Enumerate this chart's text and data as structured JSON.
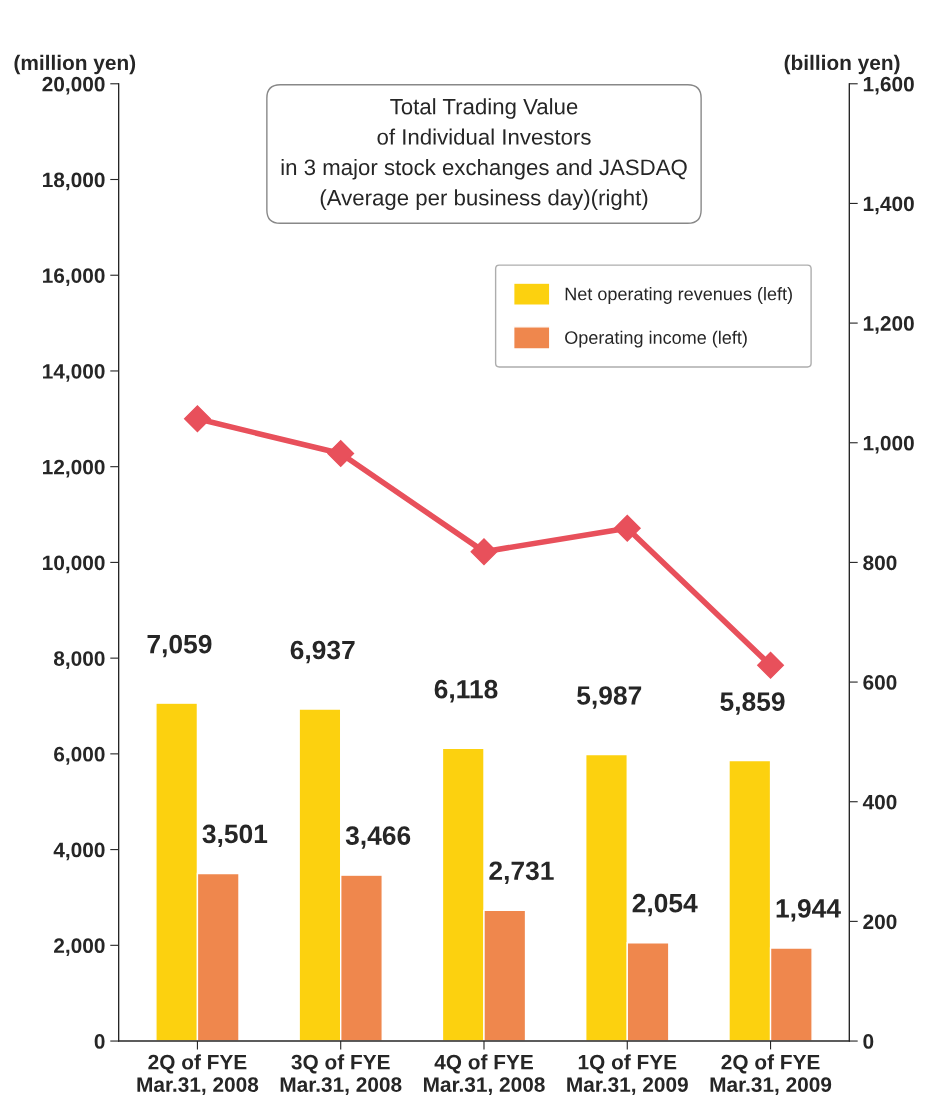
{
  "chart_data": {
    "type": "bar",
    "categories": [
      "2Q of FYE\nMar.31, 2008",
      "3Q of FYE\nMar.31, 2008",
      "4Q of FYE\nMar.31, 2008",
      "1Q of FYE\nMar.31, 2009",
      "2Q of FYE\nMar.31, 2009"
    ],
    "ylabel": "(million yen)",
    "y2label": "(billion yen)",
    "series": [
      {
        "name": "Net operating revenues (left)",
        "color": "#fcd10f",
        "values": [
          7059,
          6937,
          6118,
          5987,
          5859
        ],
        "value_labels": [
          "7,059",
          "6,937",
          "6,118",
          "5,987",
          "5,859"
        ]
      },
      {
        "name": "Operating income (left)",
        "color": "#ef874d",
        "values": [
          3501,
          3466,
          2731,
          2054,
          1944
        ],
        "value_labels": [
          "3,501",
          "3,466",
          "2,731",
          "2,054",
          "1,944"
        ]
      },
      {
        "type": "line",
        "axis": "y2",
        "color": "#e8505b",
        "marker": "diamond",
        "values": [
          1040,
          982,
          818,
          857,
          628
        ]
      }
    ],
    "ylim": [
      0,
      20000
    ],
    "yticks": [
      {
        "value": 0,
        "label": "0"
      },
      {
        "value": 2000,
        "label": "2,000"
      },
      {
        "value": 4000,
        "label": "4,000"
      },
      {
        "value": 6000,
        "label": "6,000"
      },
      {
        "value": 8000,
        "label": "8,000"
      },
      {
        "value": 10000,
        "label": "10,000"
      },
      {
        "value": 12000,
        "label": "12,000"
      },
      {
        "value": 14000,
        "label": "14,000"
      },
      {
        "value": 16000,
        "label": "16,000"
      },
      {
        "value": 18000,
        "label": "18,000"
      },
      {
        "value": 20000,
        "label": "20,000"
      }
    ],
    "y2lim": [
      0,
      1600
    ],
    "y2ticks": [
      0,
      200,
      400,
      600,
      800,
      {
        "value": 1000,
        "label": "1,000"
      },
      {
        "value": 1200,
        "label": "1,200"
      },
      {
        "value": 1400,
        "label": "1,400"
      },
      {
        "value": 1600,
        "label": "1,600"
      }
    ],
    "annotations": [
      "Total Trading Value\nof Individual Investors\nin 3 major stock exchanges and JASDAQ\n(Average per business day)(right)"
    ],
    "legend": "top right",
    "grid": false
  }
}
